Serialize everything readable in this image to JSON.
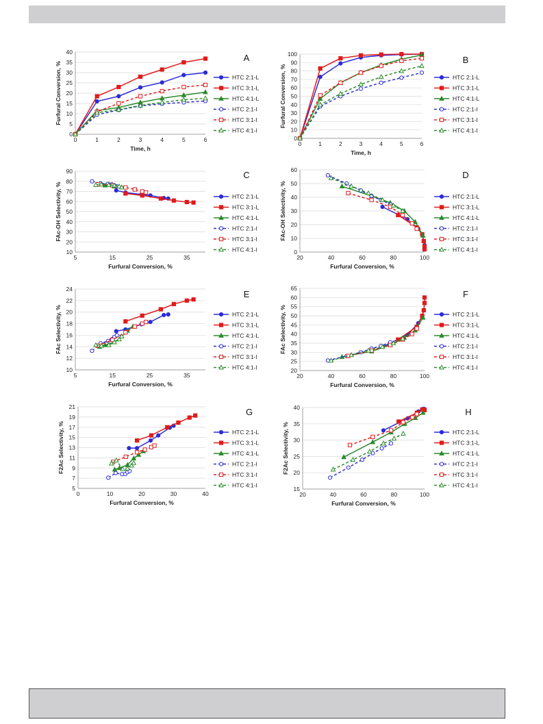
{
  "legend_entries": [
    "HTC 2:1-L",
    "HTC 3:1-L",
    "HTC 4:1-L",
    "HTC 2:1-I",
    "HTC 3:1-I",
    "HTC 4:1-I"
  ],
  "series_styles": [
    {
      "color": "#2b2bd9",
      "marker": "circle",
      "dashed": false,
      "filled": true
    },
    {
      "color": "#e01b1b",
      "marker": "square",
      "dashed": false,
      "filled": true
    },
    {
      "color": "#2a8a2a",
      "marker": "triangle",
      "dashed": false,
      "filled": true
    },
    {
      "color": "#2b2bd9",
      "marker": "circle",
      "dashed": true,
      "filled": false
    },
    {
      "color": "#e01b1b",
      "marker": "square",
      "dashed": true,
      "filled": false
    },
    {
      "color": "#2a8a2a",
      "marker": "triangle",
      "dashed": true,
      "filled": false
    }
  ],
  "chart_data": [
    {
      "panel": "A",
      "type": "line",
      "xlabel": "Time, h",
      "ylabel": "Furfural Conversion, %",
      "xlim": [
        0,
        6
      ],
      "ylim": [
        0,
        40
      ],
      "xticks": [
        0,
        1,
        2,
        3,
        4,
        5,
        6
      ],
      "yticks": [
        0,
        5,
        10,
        15,
        20,
        25,
        30,
        35,
        40
      ],
      "series": [
        {
          "name": "HTC 2:1-L",
          "x": [
            0,
            1,
            2,
            3,
            4,
            5,
            6
          ],
          "y": [
            0,
            16,
            18.5,
            22.8,
            25.2,
            28.8,
            30
          ]
        },
        {
          "name": "HTC 3:1-L",
          "x": [
            0,
            1,
            2,
            3,
            4,
            5,
            6
          ],
          "y": [
            0,
            18.5,
            23,
            28,
            31.5,
            35,
            36.8
          ]
        },
        {
          "name": "HTC 4:1-L",
          "x": [
            0,
            1,
            2,
            3,
            4,
            5,
            6
          ],
          "y": [
            0,
            11.5,
            13,
            15.5,
            17.5,
            19,
            20.5
          ]
        },
        {
          "name": "HTC 2:1-I",
          "x": [
            0,
            1,
            2,
            3,
            4,
            5,
            6
          ],
          "y": [
            0,
            9.5,
            11.8,
            13.8,
            14.8,
            15.5,
            16.2
          ]
        },
        {
          "name": "HTC 3:1-I",
          "x": [
            0,
            1,
            2,
            3,
            4,
            5,
            6
          ],
          "y": [
            0,
            11,
            15,
            18.5,
            21,
            23,
            24
          ]
        },
        {
          "name": "HTC 4:1-I",
          "x": [
            0,
            1,
            2,
            3,
            4,
            5,
            6
          ],
          "y": [
            0,
            10.5,
            12,
            14,
            15.5,
            16.8,
            17.5
          ]
        }
      ]
    },
    {
      "panel": "B",
      "type": "line",
      "xlabel": "Time, h",
      "ylabel": "Furfural Conversion, %",
      "xlim": [
        0,
        6
      ],
      "ylim": [
        0,
        100
      ],
      "xticks": [
        0,
        1,
        2,
        3,
        4,
        5,
        6
      ],
      "yticks": [
        0,
        10,
        20,
        30,
        40,
        50,
        60,
        70,
        80,
        90,
        100
      ],
      "series": [
        {
          "name": "HTC 2:1-L",
          "x": [
            0,
            1,
            2,
            3,
            4,
            5,
            6
          ],
          "y": [
            0,
            73,
            89,
            96,
            98.5,
            99.5,
            100
          ]
        },
        {
          "name": "HTC 3:1-L",
          "x": [
            0,
            1,
            2,
            3,
            4,
            5,
            6
          ],
          "y": [
            0,
            83,
            95,
            98.5,
            99.5,
            100,
            100
          ]
        },
        {
          "name": "HTC 4:1-L",
          "x": [
            0,
            1,
            2,
            3,
            4,
            5,
            6
          ],
          "y": [
            0,
            47,
            66,
            78,
            87,
            94,
            99
          ]
        },
        {
          "name": "HTC 2:1-I",
          "x": [
            0,
            1,
            2,
            3,
            4,
            5,
            6
          ],
          "y": [
            0,
            38,
            50,
            59,
            66,
            72,
            78
          ]
        },
        {
          "name": "HTC 3:1-I",
          "x": [
            0,
            1,
            2,
            3,
            4,
            5,
            6
          ],
          "y": [
            0,
            51,
            66,
            78,
            86,
            92,
            95
          ]
        },
        {
          "name": "HTC 4:1-I",
          "x": [
            0,
            1,
            2,
            3,
            4,
            5,
            6
          ],
          "y": [
            0,
            40,
            53,
            64,
            73,
            80,
            86
          ]
        }
      ]
    },
    {
      "panel": "C",
      "type": "line",
      "xlabel": "Furfural Conversion, %",
      "ylabel": "FAc-OH Selectivity, %",
      "xlim": [
        5,
        40
      ],
      "ylim": [
        10,
        90
      ],
      "xticks": [
        5,
        15,
        25,
        35
      ],
      "yticks": [
        10,
        20,
        30,
        40,
        50,
        60,
        70,
        80,
        90
      ],
      "series": [
        {
          "name": "HTC 2:1-L",
          "x": [
            16,
            18.5,
            22.8,
            25.2,
            28.8,
            30
          ],
          "y": [
            71,
            69,
            67,
            66,
            63.5,
            63
          ]
        },
        {
          "name": "HTC 3:1-L",
          "x": [
            18.5,
            23,
            28,
            31.5,
            35,
            36.8
          ],
          "y": [
            68,
            66,
            63,
            61,
            59.5,
            59
          ]
        },
        {
          "name": "HTC 4:1-L",
          "x": [
            11.5,
            13,
            15.5,
            17.5
          ],
          "y": [
            77,
            76,
            75,
            74
          ]
        },
        {
          "name": "HTC 2:1-I",
          "x": [
            9.5,
            11.8,
            13.8,
            14.8,
            15.5,
            16.2
          ],
          "y": [
            80,
            78,
            77.5,
            77,
            76,
            75
          ]
        },
        {
          "name": "HTC 3:1-I",
          "x": [
            11,
            15,
            18.5,
            21,
            23,
            24
          ],
          "y": [
            77,
            76,
            74,
            72,
            70,
            69
          ]
        },
        {
          "name": "HTC 4:1-I",
          "x": [
            10.5,
            12,
            14,
            15.5,
            16.8,
            17.5
          ],
          "y": [
            76.5,
            77,
            76.5,
            76,
            75,
            74
          ]
        }
      ]
    },
    {
      "panel": "D",
      "type": "line",
      "xlabel": "Furfural Conversion, %",
      "ylabel": "FAc-OH Selectivity, %",
      "xlim": [
        20,
        100
      ],
      "ylim": [
        0,
        60
      ],
      "xticks": [
        20,
        40,
        60,
        80,
        100
      ],
      "yticks": [
        0,
        10,
        20,
        30,
        40,
        50,
        60
      ],
      "series": [
        {
          "name": "HTC 2:1-L",
          "x": [
            73,
            89,
            96,
            98.5,
            99.5,
            100
          ],
          "y": [
            33,
            24,
            17,
            13,
            8,
            5
          ]
        },
        {
          "name": "HTC 3:1-L",
          "x": [
            83,
            95,
            98.5,
            99.5,
            100,
            100
          ],
          "y": [
            27,
            18,
            13,
            8,
            4,
            2
          ]
        },
        {
          "name": "HTC 4:1-L",
          "x": [
            47,
            66,
            78,
            87,
            94,
            99
          ],
          "y": [
            48,
            41,
            36,
            30,
            22,
            12
          ]
        },
        {
          "name": "HTC 2:1-I",
          "x": [
            38,
            50,
            59,
            66,
            72,
            78
          ],
          "y": [
            56,
            50,
            45,
            41,
            38,
            35
          ]
        },
        {
          "name": "HTC 3:1-I",
          "x": [
            51,
            66,
            78,
            86,
            92,
            95
          ],
          "y": [
            43,
            38,
            33,
            27,
            21,
            17
          ]
        },
        {
          "name": "HTC 4:1-I",
          "x": [
            40,
            53,
            64,
            73,
            80,
            86
          ],
          "y": [
            54,
            48,
            43,
            38,
            34,
            30
          ]
        }
      ]
    },
    {
      "panel": "E",
      "type": "line",
      "xlabel": "Furfural Conversion, %",
      "ylabel": "FAc Selectivity, %",
      "xlim": [
        5,
        40
      ],
      "ylim": [
        10,
        24
      ],
      "xticks": [
        5,
        15,
        25,
        35
      ],
      "yticks": [
        10,
        12,
        14,
        16,
        18,
        20,
        22,
        24
      ],
      "series": [
        {
          "name": "HTC 2:1-L",
          "x": [
            16,
            18.5,
            22.8,
            25.2,
            28.8,
            30
          ],
          "y": [
            16.7,
            17,
            17.9,
            18.3,
            19.5,
            19.6
          ]
        },
        {
          "name": "HTC 3:1-L",
          "x": [
            18.5,
            23,
            28,
            31.5,
            35,
            36.8
          ],
          "y": [
            18.4,
            19.4,
            20.5,
            21.4,
            22,
            22.2
          ]
        },
        {
          "name": "HTC 4:1-L",
          "x": [
            11.5,
            13,
            15.5,
            17.5,
            19,
            20.5
          ],
          "y": [
            14,
            14.3,
            14.8,
            15.8,
            16.8,
            17.5
          ]
        },
        {
          "name": "HTC 2:1-I",
          "x": [
            9.5,
            11.8,
            13.8,
            14.8,
            15.5,
            16.2
          ],
          "y": [
            13.3,
            14.6,
            15,
            15.3,
            15.7,
            16
          ]
        },
        {
          "name": "HTC 3:1-I",
          "x": [
            11,
            15,
            18.5,
            21,
            23,
            24
          ],
          "y": [
            14.2,
            15.2,
            16.5,
            17.5,
            18,
            18.3
          ]
        },
        {
          "name": "HTC 4:1-I",
          "x": [
            10.5,
            12,
            14,
            15.5,
            16.8,
            17.5
          ],
          "y": [
            14.3,
            14.2,
            14.3,
            14.8,
            15.3,
            15.8
          ]
        }
      ]
    },
    {
      "panel": "F",
      "type": "line",
      "xlabel": "Furfural Conversion, %",
      "ylabel": "FAc Selectivity, %",
      "xlim": [
        20,
        100
      ],
      "ylim": [
        20,
        65
      ],
      "xticks": [
        20,
        40,
        60,
        80,
        100
      ],
      "yticks": [
        20,
        25,
        30,
        35,
        40,
        45,
        50,
        55,
        60,
        65
      ],
      "series": [
        {
          "name": "HTC 2:1-L",
          "x": [
            73,
            89,
            96,
            98.5,
            99.5,
            100
          ],
          "y": [
            33,
            39.5,
            46,
            50,
            53,
            57
          ]
        },
        {
          "name": "HTC 3:1-L",
          "x": [
            83,
            95,
            98.5,
            99.5,
            100,
            100
          ],
          "y": [
            37,
            44,
            50,
            53,
            57,
            60
          ]
        },
        {
          "name": "HTC 4:1-L",
          "x": [
            47,
            66,
            78,
            87,
            94,
            99
          ],
          "y": [
            27.5,
            30.5,
            34,
            38,
            42,
            49
          ]
        },
        {
          "name": "HTC 2:1-I",
          "x": [
            38,
            50,
            59,
            66,
            72,
            78
          ],
          "y": [
            25.5,
            28,
            30,
            32,
            33.5,
            35.5
          ]
        },
        {
          "name": "HTC 3:1-I",
          "x": [
            51,
            66,
            78,
            86,
            92,
            95
          ],
          "y": [
            28,
            31,
            34,
            37,
            40,
            43
          ]
        },
        {
          "name": "HTC 4:1-I",
          "x": [
            40,
            53,
            64,
            73,
            80,
            86
          ],
          "y": [
            25.5,
            28.5,
            31,
            33,
            35,
            37.5
          ]
        }
      ]
    },
    {
      "panel": "G",
      "type": "line",
      "xlabel": "Furfural Conversion, %",
      "ylabel": "F2Ac Selectivity, %",
      "xlim": [
        0,
        40
      ],
      "ylim": [
        5,
        21
      ],
      "xticks": [
        0,
        10,
        20,
        30,
        40
      ],
      "yticks": [
        5,
        7,
        9,
        11,
        13,
        15,
        17,
        19,
        21
      ],
      "series": [
        {
          "name": "HTC 2:1-L",
          "x": [
            16,
            18.5,
            22.8,
            25.2,
            28.8,
            30
          ],
          "y": [
            12.9,
            12.9,
            14.4,
            15.4,
            16.9,
            17.3
          ]
        },
        {
          "name": "HTC 3:1-L",
          "x": [
            18.5,
            23,
            28,
            31.5,
            35,
            36.8
          ],
          "y": [
            14.4,
            15.4,
            17,
            17.9,
            18.9,
            19.3
          ]
        },
        {
          "name": "HTC 4:1-L",
          "x": [
            11.5,
            13,
            15.5,
            17.5,
            19,
            20.5
          ],
          "y": [
            8.7,
            9,
            9.6,
            10.9,
            11.6,
            12.3
          ]
        },
        {
          "name": "HTC 2:1-I",
          "x": [
            9.5,
            11.8,
            13.8,
            14.8,
            15.5,
            16.2
          ],
          "y": [
            7.1,
            8,
            7.8,
            7.8,
            8.2,
            8.4
          ]
        },
        {
          "name": "HTC 3:1-I",
          "x": [
            11,
            15,
            18.5,
            21,
            23,
            24
          ],
          "y": [
            10.2,
            11.2,
            12.1,
            12.6,
            13.1,
            13.4
          ]
        },
        {
          "name": "HTC 4:1-I",
          "x": [
            10.5,
            12,
            14,
            15.5,
            16.8,
            17.5
          ],
          "y": [
            9.9,
            10.5,
            8.8,
            8.9,
            9.5,
            10
          ]
        }
      ]
    },
    {
      "panel": "H",
      "type": "line",
      "xlabel": "Furfural Conversion, %",
      "ylabel": "F2Ac Selectivity, %",
      "xlim": [
        20,
        100
      ],
      "ylim": [
        15,
        40
      ],
      "xticks": [
        20,
        40,
        60,
        80,
        100
      ],
      "yticks": [
        15,
        20,
        25,
        30,
        35,
        40
      ],
      "series": [
        {
          "name": "HTC 2:1-L",
          "x": [
            73,
            89,
            96,
            98.5,
            99.5,
            100
          ],
          "y": [
            33,
            36.7,
            38.8,
            39.5,
            39.6,
            39.5
          ]
        },
        {
          "name": "HTC 3:1-L",
          "x": [
            83,
            95,
            98.5,
            99.5,
            100,
            100
          ],
          "y": [
            35.7,
            38.4,
            39.4,
            39.3,
            39.3,
            39.2
          ]
        },
        {
          "name": "HTC 4:1-L",
          "x": [
            47,
            66,
            78,
            87,
            94,
            99
          ],
          "y": [
            24.8,
            29.4,
            32.4,
            35,
            36.8,
            38.4
          ]
        },
        {
          "name": "HTC 2:1-I",
          "x": [
            38,
            50,
            59,
            66,
            72,
            78
          ],
          "y": [
            18.5,
            21.6,
            24,
            26,
            27.5,
            29
          ]
        },
        {
          "name": "HTC 3:1-I",
          "x": [
            51,
            66,
            78,
            86,
            92,
            95
          ],
          "y": [
            28.5,
            31,
            33,
            35.5,
            37,
            38
          ]
        },
        {
          "name": "HTC 4:1-I",
          "x": [
            40,
            53,
            64,
            73,
            80,
            86
          ],
          "y": [
            21,
            24,
            26.5,
            29,
            30.5,
            32
          ]
        }
      ]
    }
  ]
}
